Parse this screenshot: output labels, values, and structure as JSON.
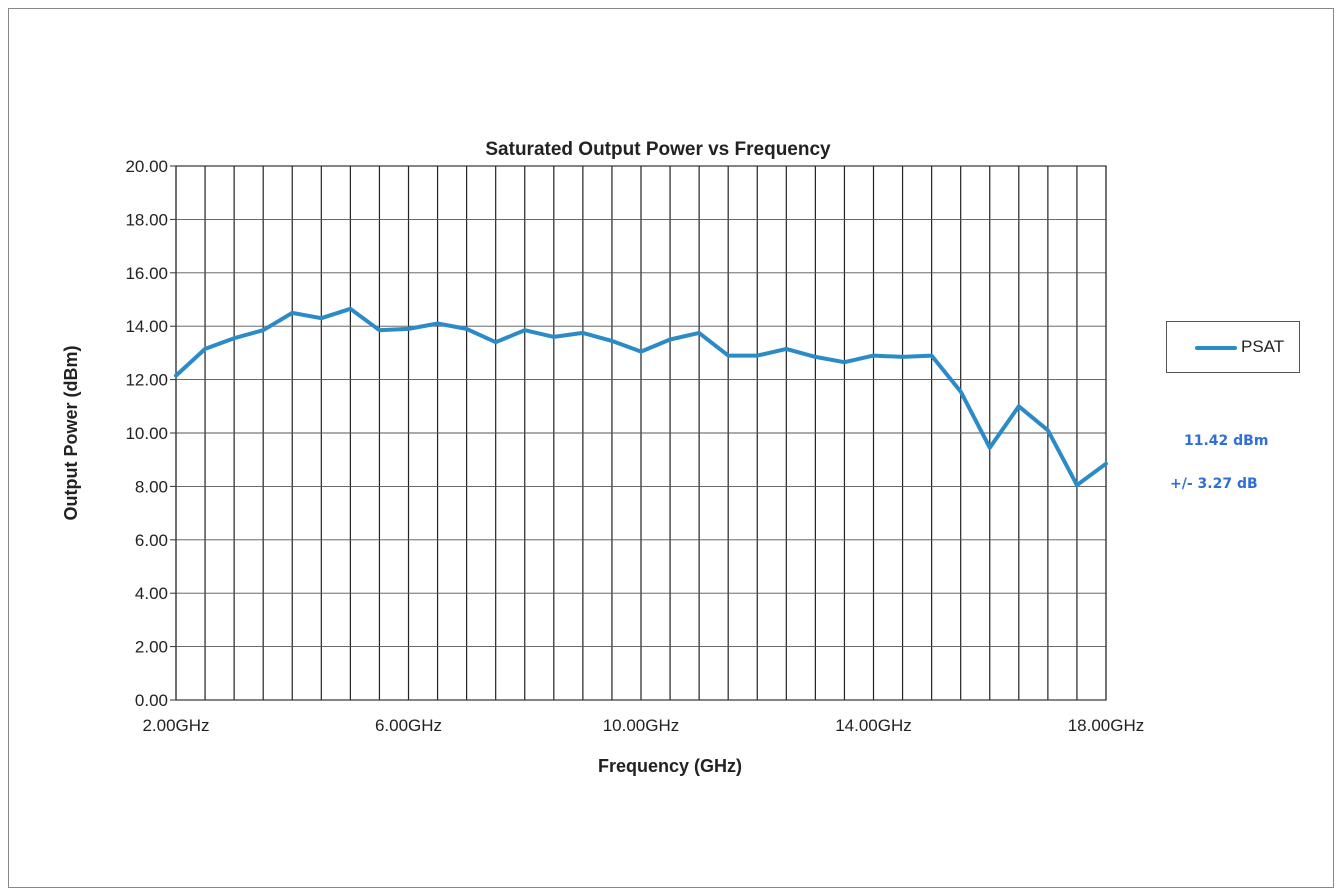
{
  "chart_data": {
    "type": "line",
    "title": "Saturated Output Power vs Frequency",
    "xlabel": "Frequency (GHz)",
    "ylabel": "Output Power (dBm)",
    "xlim": [
      2.0,
      18.0
    ],
    "ylim": [
      0.0,
      20.0
    ],
    "x_ticks": [
      2,
      6,
      10,
      14,
      18
    ],
    "x_tick_labels": [
      "2.00GHz",
      "6.00GHz",
      "10.00GHz",
      "14.00GHz",
      "18.00GHz"
    ],
    "y_ticks": [
      0,
      2,
      4,
      6,
      8,
      10,
      12,
      14,
      16,
      18,
      20
    ],
    "y_tick_labels": [
      "0.00",
      "2.00",
      "4.00",
      "6.00",
      "8.00",
      "10.00",
      "12.00",
      "14.00",
      "16.00",
      "18.00",
      "20.00"
    ],
    "x_gridlines": [
      2.0,
      2.5,
      3.0,
      3.5,
      4.0,
      4.5,
      5.0,
      5.5,
      6.0,
      6.5,
      7.0,
      7.5,
      8.0,
      8.5,
      9.0,
      9.5,
      10.0,
      10.5,
      11.0,
      11.5,
      12.0,
      12.5,
      13.0,
      13.5,
      14.0,
      14.5,
      15.0,
      15.5,
      16.0,
      16.5,
      17.0,
      17.5,
      18.0
    ],
    "grid": true,
    "legend_position": "right",
    "series": [
      {
        "name": "PSAT",
        "color": "#2b8bc6",
        "x": [
          2.0,
          2.5,
          3.0,
          3.5,
          4.0,
          4.5,
          5.0,
          5.5,
          6.0,
          6.5,
          7.0,
          7.5,
          8.0,
          8.5,
          9.0,
          9.5,
          10.0,
          10.5,
          11.0,
          11.5,
          12.0,
          12.5,
          13.0,
          13.5,
          14.0,
          14.5,
          15.0,
          15.5,
          16.0,
          16.5,
          17.0,
          17.5,
          18.0
        ],
        "y": [
          12.15,
          13.15,
          13.55,
          13.85,
          14.5,
          14.3,
          14.65,
          13.85,
          13.9,
          14.1,
          13.9,
          13.4,
          13.85,
          13.6,
          13.75,
          13.45,
          13.05,
          13.5,
          13.75,
          12.9,
          12.9,
          13.15,
          12.85,
          12.65,
          12.9,
          12.85,
          12.9,
          11.55,
          9.45,
          11.0,
          10.1,
          8.05,
          8.85
        ]
      }
    ],
    "annotations": [
      {
        "text": "11.42 dBm",
        "color": "#2f6fd6"
      },
      {
        "text": "+/- 3.27 dB",
        "color": "#2f6fd6"
      }
    ]
  }
}
